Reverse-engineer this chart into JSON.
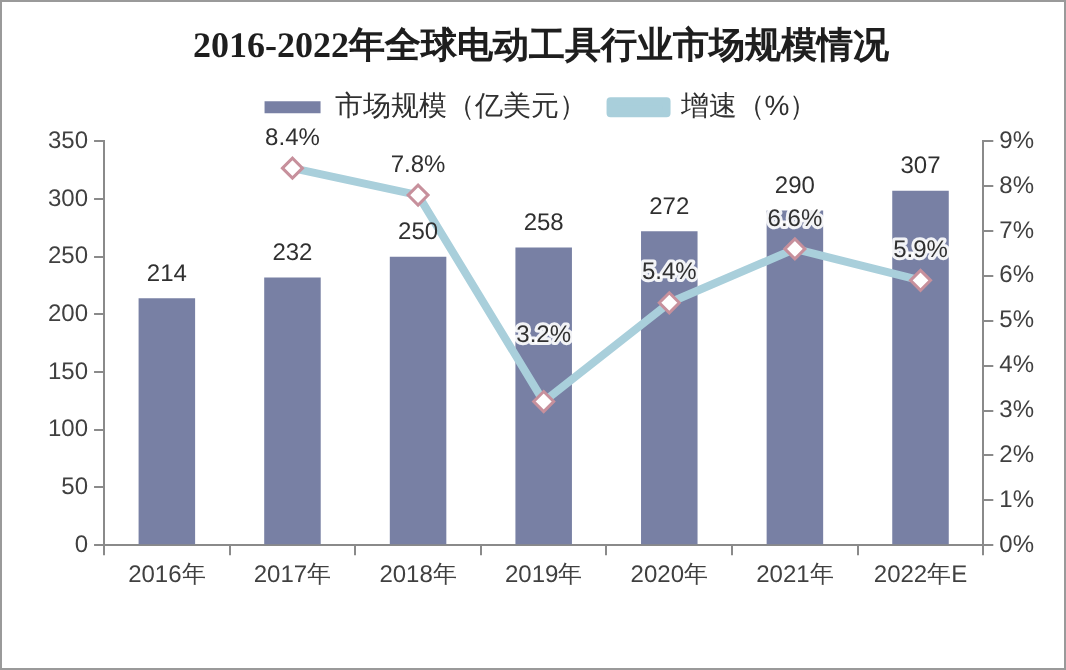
{
  "chart_data": {
    "type": "bar",
    "title": "2016-2022年全球电动工具行业市场规模情况",
    "categories": [
      "2016年",
      "2017年",
      "2018年",
      "2019年",
      "2020年",
      "2021年",
      "2022年E"
    ],
    "series": [
      {
        "name": "市场规模（亿美元）",
        "color": "#7880a4",
        "values": [
          214,
          232,
          250,
          258,
          272,
          290,
          307
        ],
        "value_labels": [
          "214",
          "232",
          "250",
          "258",
          "272",
          "290",
          "307"
        ]
      },
      {
        "name": "增速（%）",
        "type": "line",
        "axis": "y2",
        "color": "#a9cfdb",
        "values": [
          null,
          8.4,
          7.8,
          3.2,
          5.4,
          6.6,
          5.9
        ],
        "value_labels": [
          null,
          "8.4%",
          "7.8%",
          "3.2%",
          "5.4%",
          "6.6%",
          "5.9%"
        ]
      }
    ],
    "ylim": [
      0,
      350
    ],
    "yticks": [
      0,
      50,
      100,
      150,
      200,
      250,
      300,
      350
    ],
    "y2lim": [
      0,
      9
    ],
    "y2ticks": [
      {
        "value": 0,
        "label": "0%"
      },
      {
        "value": 1,
        "label": "1%"
      },
      {
        "value": 2,
        "label": "2%"
      },
      {
        "value": 3,
        "label": "3%"
      },
      {
        "value": 4,
        "label": "4%"
      },
      {
        "value": 5,
        "label": "5%"
      },
      {
        "value": 6,
        "label": "6%"
      },
      {
        "value": 7,
        "label": "7%"
      },
      {
        "value": 8,
        "label": "8%"
      },
      {
        "value": 9,
        "label": "9%"
      }
    ],
    "legend": "top",
    "grid": false,
    "marker": "diamond",
    "line_style": "solid"
  }
}
